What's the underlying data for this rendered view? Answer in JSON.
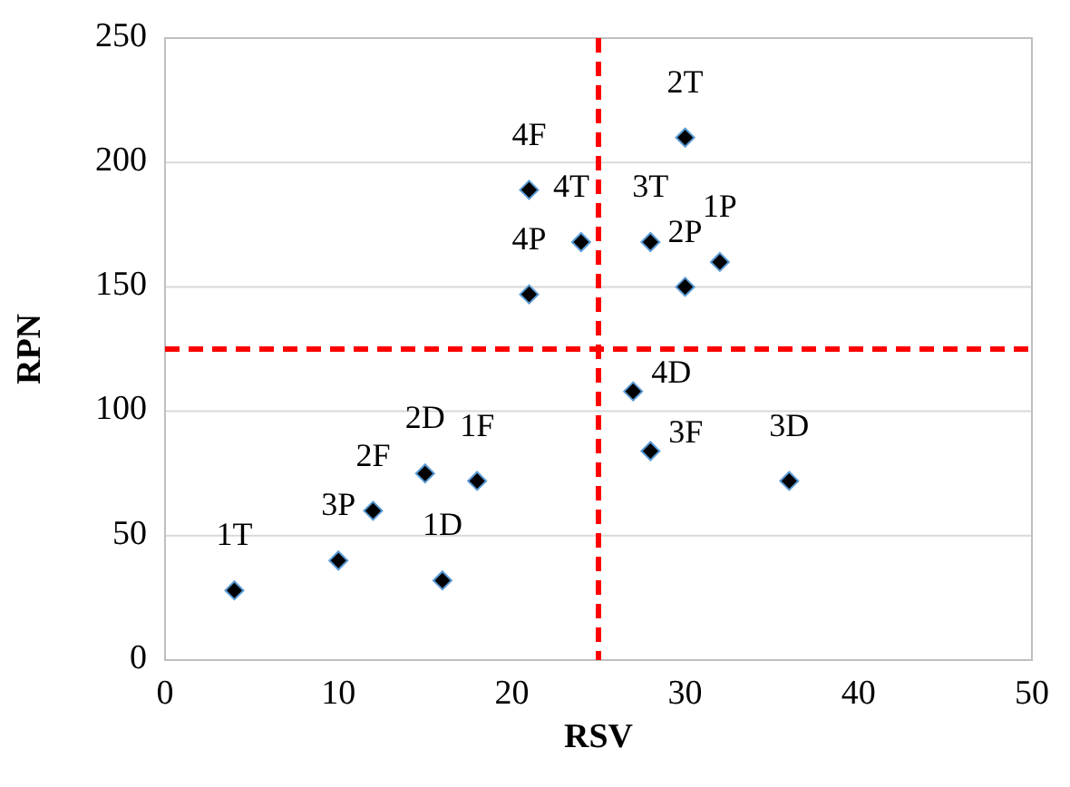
{
  "chart_data": {
    "type": "scatter",
    "xlabel": "RSV",
    "ylabel": "RPN",
    "x": [
      4,
      10,
      12,
      15,
      18,
      16,
      27,
      28,
      36,
      30,
      21,
      24,
      28,
      30,
      32,
      21
    ],
    "series": [
      {
        "color": "#000000",
        "values": [
          28,
          40,
          60,
          75,
          72,
          32,
          108,
          84,
          72,
          210,
          189,
          168,
          168,
          150,
          160,
          147
        ]
      }
    ],
    "marker": "diamond",
    "grid": "y",
    "xlim": [
      0,
      50
    ],
    "xticks": [
      0,
      10,
      20,
      30,
      40,
      50
    ],
    "ylim": [
      0,
      250
    ],
    "yticks": [
      0,
      50,
      100,
      150,
      200,
      250
    ],
    "ref_lines": [
      {
        "axis": "x",
        "value": 25,
        "color": "#ff0000",
        "line_style": "dashed"
      },
      {
        "axis": "y",
        "value": 125,
        "color": "#ff0000",
        "line_style": "dashed"
      }
    ],
    "annotations": [
      {
        "text": "1T",
        "x": 4,
        "y": 28
      },
      {
        "text": "3P",
        "x": 10,
        "y": 40
      },
      {
        "text": "2F",
        "x": 12,
        "y": 60
      },
      {
        "text": "2D",
        "x": 15,
        "y": 75
      },
      {
        "text": "1F",
        "x": 18,
        "y": 72
      },
      {
        "text": "1D",
        "x": 16,
        "y": 32
      },
      {
        "text": "4D",
        "x": 27,
        "y": 108
      },
      {
        "text": "3F",
        "x": 28,
        "y": 84
      },
      {
        "text": "3D",
        "x": 36,
        "y": 72
      },
      {
        "text": "2T",
        "x": 30,
        "y": 210
      },
      {
        "text": "4F",
        "x": 21,
        "y": 189
      },
      {
        "text": "4T",
        "x": 24,
        "y": 168
      },
      {
        "text": "3T",
        "x": 28,
        "y": 168
      },
      {
        "text": "2P",
        "x": 30,
        "y": 150
      },
      {
        "text": "1P",
        "x": 32,
        "y": 160
      },
      {
        "text": "4P",
        "x": 21,
        "y": 147
      }
    ]
  }
}
